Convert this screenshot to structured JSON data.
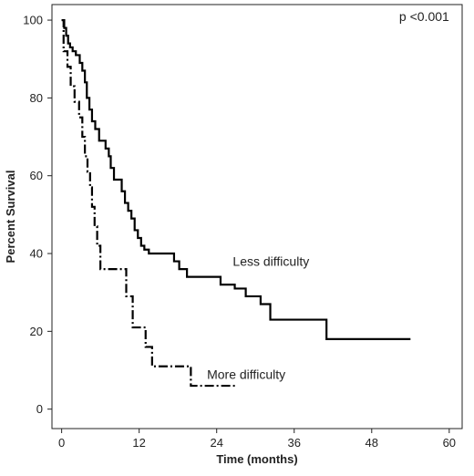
{
  "chart_data": {
    "type": "line",
    "title": "",
    "xlabel": "Time (months)",
    "ylabel": "Percent Survival",
    "xlim": [
      -1.5,
      62
    ],
    "ylim": [
      -5,
      104
    ],
    "xticks": [
      0,
      12,
      24,
      36,
      48,
      60
    ],
    "yticks": [
      0,
      20,
      40,
      60,
      80,
      100
    ],
    "grid": false,
    "legend": "none",
    "annotations": [
      {
        "text": "p <0.001",
        "x": 60,
        "y": 101
      },
      {
        "text": "Less difficulty",
        "x": 26.5,
        "y": 38
      },
      {
        "text": "More difficulty",
        "x": 22.5,
        "y": 9
      }
    ],
    "series": [
      {
        "name": "Less difficulty",
        "style": "solid",
        "color": "#000000",
        "x": [
          0,
          0.4,
          0.7,
          1.0,
          1.3,
          1.7,
          2.2,
          2.8,
          3.2,
          3.6,
          3.9,
          4.3,
          4.7,
          5.2,
          5.8,
          6.8,
          7.3,
          7.6,
          8.1,
          9.3,
          9.8,
          10.3,
          10.8,
          11.3,
          11.8,
          12.3,
          12.8,
          13.5,
          14.6,
          17.4,
          18.2,
          19.4,
          21.8,
          24.6,
          26.8,
          28.5,
          30.8,
          32.3,
          41.0,
          54.0
        ],
        "y": [
          100,
          98,
          96,
          94,
          93,
          92,
          91,
          89,
          87,
          84,
          80,
          77,
          74,
          72,
          69,
          67,
          65,
          62,
          59,
          56,
          53,
          51,
          49,
          46,
          44,
          42,
          41,
          40,
          40,
          38,
          36,
          34,
          34,
          32,
          31,
          29,
          27,
          23,
          18,
          18
        ]
      },
      {
        "name": "More difficulty",
        "style": "dashdot",
        "color": "#000000",
        "x": [
          0,
          0.3,
          0.9,
          1.4,
          2.0,
          2.7,
          3.2,
          3.6,
          4.0,
          4.4,
          4.7,
          5.1,
          5.5,
          6.0,
          10.0,
          11.0,
          13.0,
          14.0,
          19.0,
          20.0,
          27.0
        ],
        "y": [
          100,
          92,
          88,
          83,
          79,
          75,
          70,
          65,
          61,
          57,
          52,
          47,
          42,
          36,
          29,
          21,
          16,
          11,
          11,
          6,
          6
        ]
      }
    ]
  }
}
